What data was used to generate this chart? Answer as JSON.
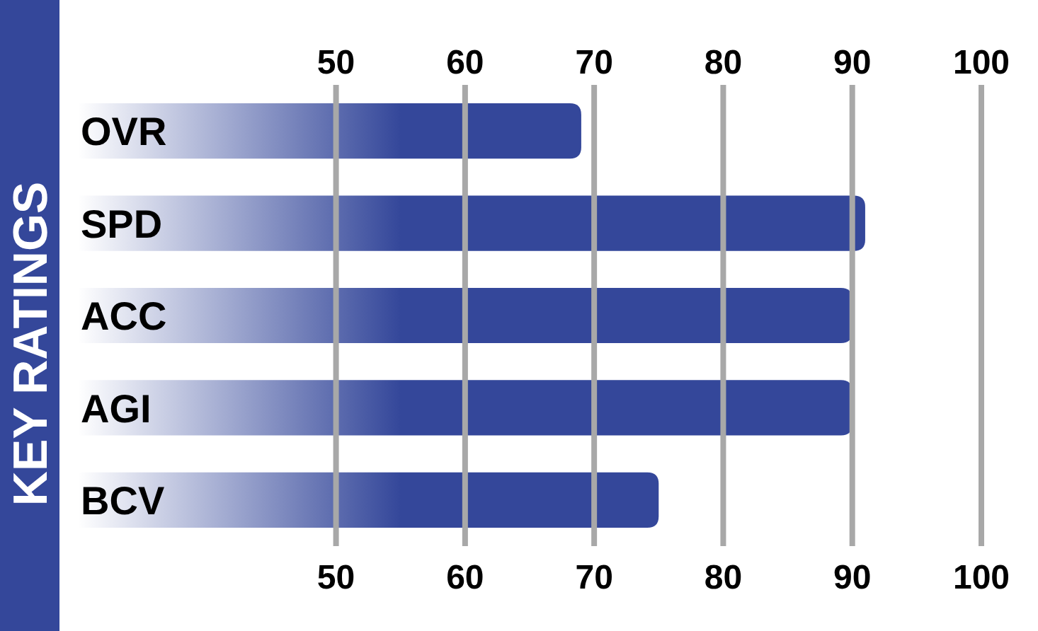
{
  "chart_data": {
    "type": "bar",
    "orientation": "horizontal",
    "title": "KEY RATINGS",
    "categories": [
      "OVR",
      "SPD",
      "ACC",
      "AGI",
      "BCV"
    ],
    "values": [
      69,
      91,
      90,
      90,
      75
    ],
    "color": "#34479a",
    "xlim": [
      30,
      100
    ],
    "xticks": [
      50,
      60,
      70,
      80,
      90,
      100
    ],
    "x2lim": [
      30,
      100
    ],
    "x2ticks": [
      50,
      60,
      70,
      80,
      90,
      100
    ],
    "grid": "x"
  }
}
